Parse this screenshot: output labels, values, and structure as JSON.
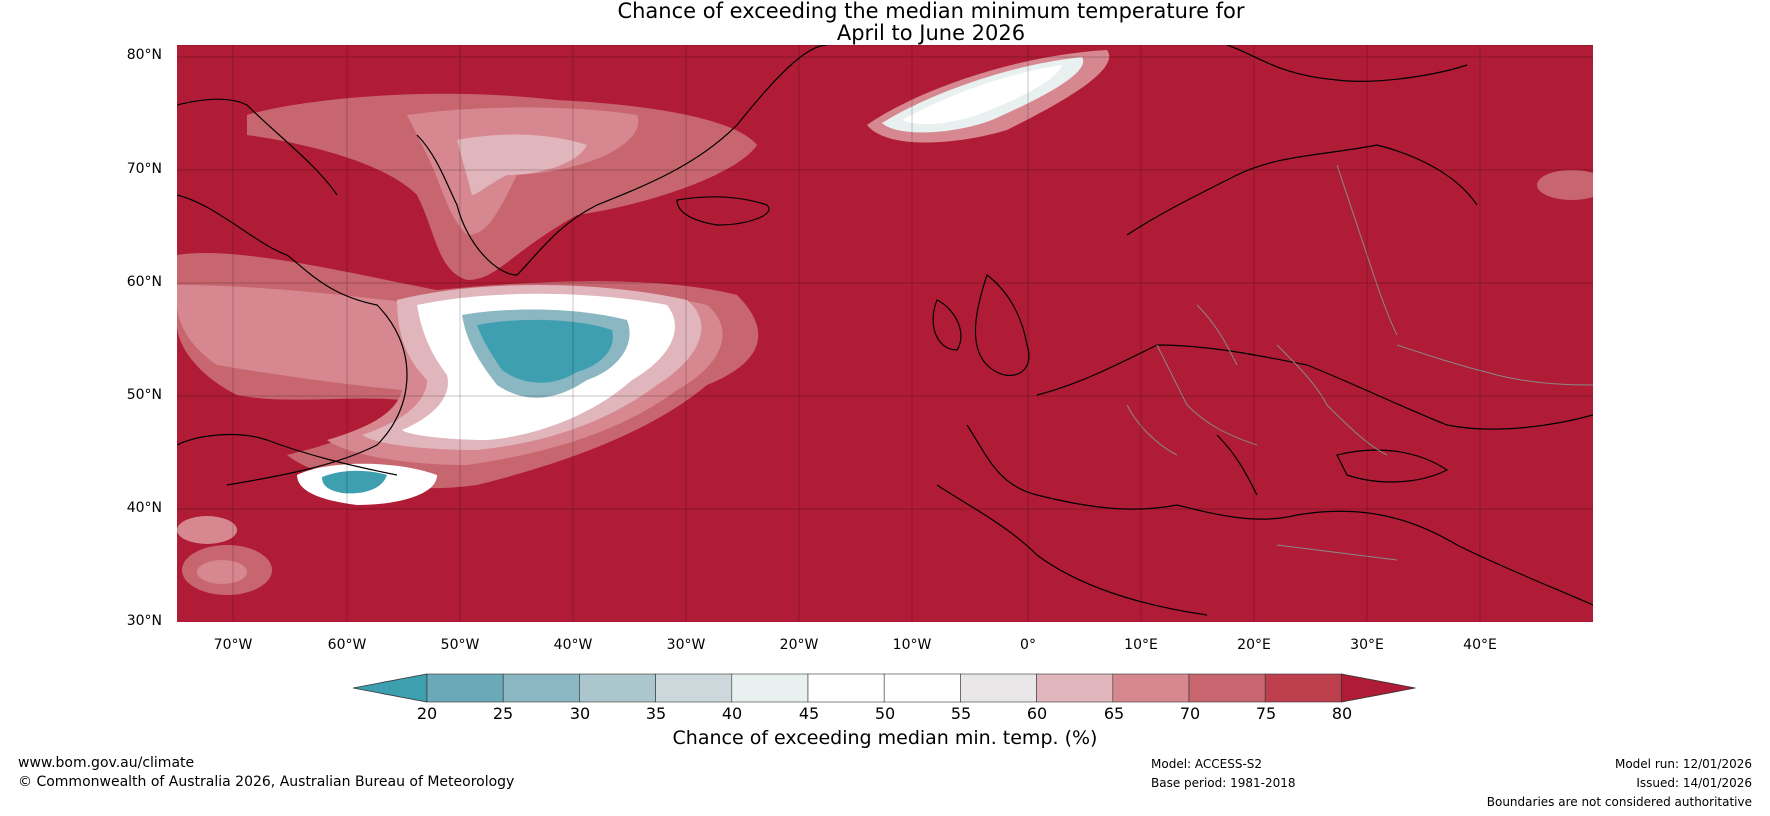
{
  "title": {
    "line1": "Chance of exceeding the median minimum temperature for",
    "line2": "April to June 2026"
  },
  "map": {
    "background_color": "#b01c35",
    "region": "North Atlantic and Europe",
    "lat_labels": [
      "80°N",
      "70°N",
      "60°N",
      "50°N",
      "40°N",
      "30°N"
    ],
    "lon_labels": [
      "70°W",
      "60°W",
      "50°W",
      "40°W",
      "30°W",
      "20°W",
      "10°W",
      "0°",
      "10°E",
      "20°E",
      "30°E",
      "40°E"
    ]
  },
  "colorbar": {
    "ticks": [
      "20",
      "25",
      "30",
      "35",
      "40",
      "45",
      "50",
      "55",
      "60",
      "65",
      "70",
      "75",
      "80"
    ],
    "colors": [
      "#3e9fb1",
      "#6aa9b8",
      "#8bb7c3",
      "#abc6cc",
      "#ccd8dc",
      "#e8f0f0",
      "#ffffff",
      "#ffffff",
      "#eae7e8",
      "#e0b5bc",
      "#d6878f",
      "#c8666f",
      "#bd3f4d",
      "#b01c35"
    ],
    "label": "Chance of exceeding median min. temp. (%)"
  },
  "footer": {
    "website": "www.bom.gov.au/climate",
    "copyright": "© Commonwealth of Australia 2026, Australian Bureau of Meteorology",
    "model": "Model: ACCESS-S2",
    "base_period": "Base period: 1981-2018",
    "model_run": "Model run: 12/01/2026",
    "issued": "Issued: 14/01/2026",
    "disclaimer": "Boundaries are not considered authoritative"
  }
}
